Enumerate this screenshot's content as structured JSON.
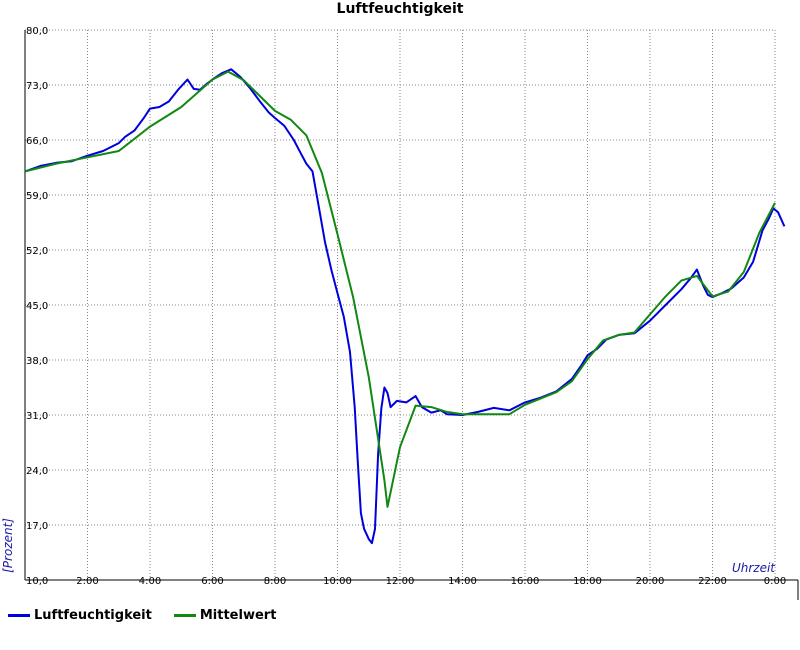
{
  "chart_data": {
    "type": "line",
    "title": "Luftfeuchtigkeit",
    "xlabel": "Uhrzeit",
    "ylabel": "[Prozent]",
    "x_ticks": [
      "0:00",
      "2:00",
      "4:00",
      "6:00",
      "8:00",
      "10:00",
      "12:00",
      "14:00",
      "16:00",
      "18:00",
      "20:00",
      "22:00",
      "0:00"
    ],
    "y_ticks": [
      "10,0",
      "17,0",
      "24,0",
      "31,0",
      "38,0",
      "45,0",
      "52,0",
      "59,0",
      "66,0",
      "73,0",
      "80,0"
    ],
    "xlim": [
      0,
      24
    ],
    "ylim": [
      10,
      80
    ],
    "grid": true,
    "legend_position": "bottom-left",
    "series": [
      {
        "name": "Luftfeuchtigkeit",
        "color": "#0000dd",
        "points": [
          [
            0,
            62.0
          ],
          [
            0.5,
            62.7
          ],
          [
            1.0,
            63.1
          ],
          [
            1.5,
            63.3
          ],
          [
            2.0,
            64.0
          ],
          [
            2.5,
            64.6
          ],
          [
            3.0,
            65.6
          ],
          [
            3.2,
            66.4
          ],
          [
            3.5,
            67.2
          ],
          [
            3.8,
            68.8
          ],
          [
            4.0,
            70.0
          ],
          [
            4.3,
            70.2
          ],
          [
            4.6,
            70.9
          ],
          [
            4.9,
            72.4
          ],
          [
            5.2,
            73.7
          ],
          [
            5.4,
            72.5
          ],
          [
            5.6,
            72.4
          ],
          [
            5.8,
            73.1
          ],
          [
            6.0,
            73.7
          ],
          [
            6.3,
            74.5
          ],
          [
            6.6,
            75.0
          ],
          [
            6.9,
            74.0
          ],
          [
            7.2,
            72.6
          ],
          [
            7.5,
            71.0
          ],
          [
            7.8,
            69.5
          ],
          [
            8.0,
            68.8
          ],
          [
            8.3,
            67.8
          ],
          [
            8.6,
            66.0
          ],
          [
            8.8,
            64.5
          ],
          [
            9.0,
            63.0
          ],
          [
            9.2,
            62.0
          ],
          [
            9.4,
            57.5
          ],
          [
            9.6,
            53.0
          ],
          [
            9.8,
            49.5
          ],
          [
            10.0,
            46.5
          ],
          [
            10.2,
            43.5
          ],
          [
            10.4,
            39.0
          ],
          [
            10.55,
            32.0
          ],
          [
            10.65,
            25.0
          ],
          [
            10.75,
            18.5
          ],
          [
            10.85,
            16.5
          ],
          [
            11.0,
            15.2
          ],
          [
            11.1,
            14.7
          ],
          [
            11.2,
            16.5
          ],
          [
            11.3,
            26.0
          ],
          [
            11.4,
            31.8
          ],
          [
            11.5,
            34.5
          ],
          [
            11.6,
            33.8
          ],
          [
            11.7,
            32.0
          ],
          [
            11.9,
            32.8
          ],
          [
            12.2,
            32.6
          ],
          [
            12.5,
            33.4
          ],
          [
            12.7,
            32.0
          ],
          [
            13.0,
            31.3
          ],
          [
            13.3,
            31.6
          ],
          [
            13.5,
            31.1
          ],
          [
            14.0,
            31.0
          ],
          [
            14.5,
            31.4
          ],
          [
            15.0,
            31.9
          ],
          [
            15.5,
            31.6
          ],
          [
            16.0,
            32.6
          ],
          [
            16.5,
            33.2
          ],
          [
            17.0,
            34.0
          ],
          [
            17.5,
            35.6
          ],
          [
            17.8,
            37.3
          ],
          [
            18.0,
            38.6
          ],
          [
            18.3,
            39.4
          ],
          [
            18.6,
            40.6
          ],
          [
            19.0,
            41.2
          ],
          [
            19.5,
            41.4
          ],
          [
            20.0,
            43.0
          ],
          [
            20.5,
            45.0
          ],
          [
            21.0,
            47.0
          ],
          [
            21.3,
            48.4
          ],
          [
            21.5,
            49.5
          ],
          [
            21.7,
            47.5
          ],
          [
            21.85,
            46.3
          ],
          [
            22.0,
            46.0
          ],
          [
            22.3,
            46.5
          ],
          [
            22.6,
            47.1
          ],
          [
            23.0,
            48.5
          ],
          [
            23.3,
            50.5
          ],
          [
            23.6,
            54.5
          ],
          [
            23.8,
            56.0
          ],
          [
            23.95,
            57.3
          ],
          [
            24.1,
            56.8
          ],
          [
            24.3,
            55.0
          ]
        ]
      },
      {
        "name": "Mittelwert",
        "color": "#118811",
        "points": [
          [
            0,
            62.0
          ],
          [
            1.0,
            63.0
          ],
          [
            2.0,
            63.8
          ],
          [
            3.0,
            64.6
          ],
          [
            4.0,
            67.7
          ],
          [
            5.0,
            70.2
          ],
          [
            6.0,
            73.7
          ],
          [
            6.5,
            74.7
          ],
          [
            7.0,
            73.6
          ],
          [
            8.0,
            69.7
          ],
          [
            8.5,
            68.6
          ],
          [
            9.0,
            66.6
          ],
          [
            9.5,
            61.8
          ],
          [
            10.0,
            54.0
          ],
          [
            10.5,
            46.0
          ],
          [
            11.0,
            35.8
          ],
          [
            11.5,
            22.7
          ],
          [
            11.6,
            19.3
          ],
          [
            12.0,
            26.9
          ],
          [
            12.5,
            32.2
          ],
          [
            13.0,
            32.0
          ],
          [
            13.5,
            31.4
          ],
          [
            14.0,
            31.1
          ],
          [
            15.0,
            31.1
          ],
          [
            15.5,
            31.1
          ],
          [
            16.0,
            32.3
          ],
          [
            17.0,
            33.9
          ],
          [
            17.5,
            35.3
          ],
          [
            18.0,
            38.1
          ],
          [
            18.5,
            40.5
          ],
          [
            19.0,
            41.2
          ],
          [
            19.5,
            41.5
          ],
          [
            20.0,
            43.8
          ],
          [
            20.5,
            46.1
          ],
          [
            21.0,
            48.1
          ],
          [
            21.5,
            48.7
          ],
          [
            22.0,
            46.1
          ],
          [
            22.5,
            46.7
          ],
          [
            23.0,
            49.2
          ],
          [
            23.5,
            54.2
          ],
          [
            24.0,
            58.0
          ]
        ]
      }
    ]
  }
}
